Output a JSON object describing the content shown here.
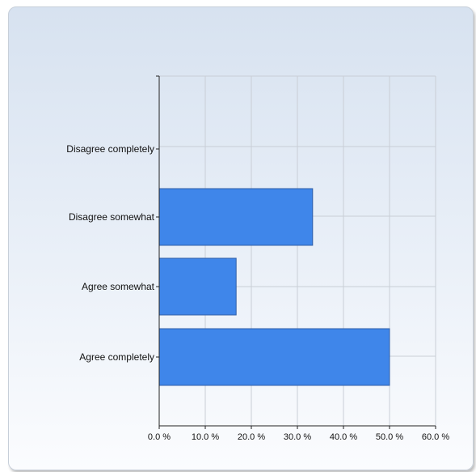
{
  "chart_data": {
    "type": "bar",
    "orientation": "horizontal",
    "categories": [
      "Disagree completely",
      "Disagree somewhat",
      "Agree somewhat",
      "Agree completely"
    ],
    "values": [
      0,
      33.3,
      16.7,
      50.0
    ],
    "x_ticks": [
      "0.0 %",
      "10.0 %",
      "20.0 %",
      "30.0 %",
      "40.0 %",
      "50.0 %",
      "60.0 %"
    ],
    "xlim": [
      0,
      60
    ],
    "grid": true,
    "colors": {
      "bar": "#3f86ea",
      "bar_border": "#2f5ea7"
    }
  }
}
